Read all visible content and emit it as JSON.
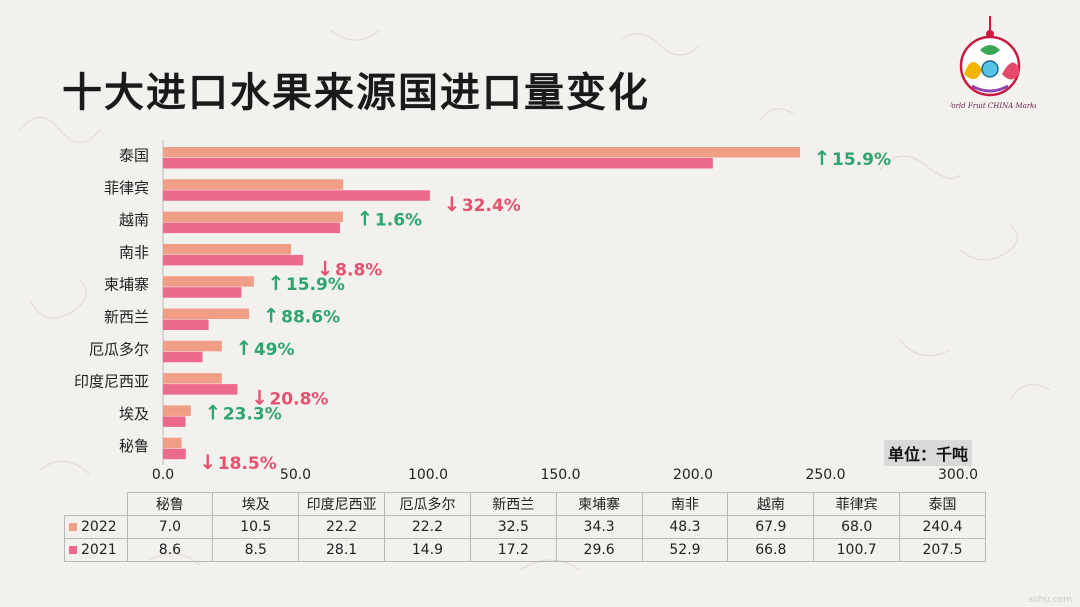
{
  "title": "十大进口水果来源国进口量变化",
  "logo_text": "World Fruit CHINA Market",
  "unit_label": "单位：千吨",
  "footer_mark": "sohu.com",
  "colors": {
    "series_2022": "#f19e86",
    "series_2021": "#ec6a8b",
    "up": "#2ea56f",
    "down": "#e5516e",
    "brand": "#e0245e"
  },
  "chart_data": {
    "type": "bar",
    "orientation": "horizontal",
    "categories": [
      "泰国",
      "菲律宾",
      "越南",
      "南非",
      "柬埔寨",
      "新西兰",
      "厄瓜多尔",
      "印度尼西亚",
      "埃及",
      "秘鲁"
    ],
    "series": [
      {
        "name": "2022",
        "values": [
          240.4,
          68.0,
          67.9,
          48.3,
          34.3,
          32.5,
          22.2,
          22.2,
          10.5,
          7.0
        ]
      },
      {
        "name": "2021",
        "values": [
          207.5,
          100.7,
          66.8,
          52.9,
          29.6,
          17.2,
          14.9,
          28.1,
          8.5,
          8.6
        ]
      }
    ],
    "changes": [
      {
        "direction": "up",
        "label": "15.9%"
      },
      {
        "direction": "down",
        "label": "32.4%"
      },
      {
        "direction": "up",
        "label": "1.6%"
      },
      {
        "direction": "down",
        "label": "8.8%"
      },
      {
        "direction": "up",
        "label": "15.9%"
      },
      {
        "direction": "up",
        "label": "88.6%"
      },
      {
        "direction": "up",
        "label": "49%"
      },
      {
        "direction": "down",
        "label": "20.8%"
      },
      {
        "direction": "up",
        "label": "23.3%"
      },
      {
        "direction": "down",
        "label": "18.5%"
      }
    ],
    "xlim": [
      0,
      300
    ],
    "xticks": [
      "0.0",
      "50.0",
      "100.0",
      "150.0",
      "200.0",
      "250.0",
      "300.0"
    ]
  },
  "table": {
    "columns": [
      "秘鲁",
      "埃及",
      "印度尼西亚",
      "厄瓜多尔",
      "新西兰",
      "柬埔寨",
      "南非",
      "越南",
      "菲律宾",
      "泰国"
    ],
    "rows": [
      {
        "label": "2022",
        "values": [
          "7.0",
          "10.5",
          "22.2",
          "22.2",
          "32.5",
          "34.3",
          "48.3",
          "67.9",
          "68.0",
          "240.4"
        ]
      },
      {
        "label": "2021",
        "values": [
          "8.6",
          "8.5",
          "28.1",
          "14.9",
          "17.2",
          "29.6",
          "52.9",
          "66.8",
          "100.7",
          "207.5"
        ]
      }
    ]
  }
}
